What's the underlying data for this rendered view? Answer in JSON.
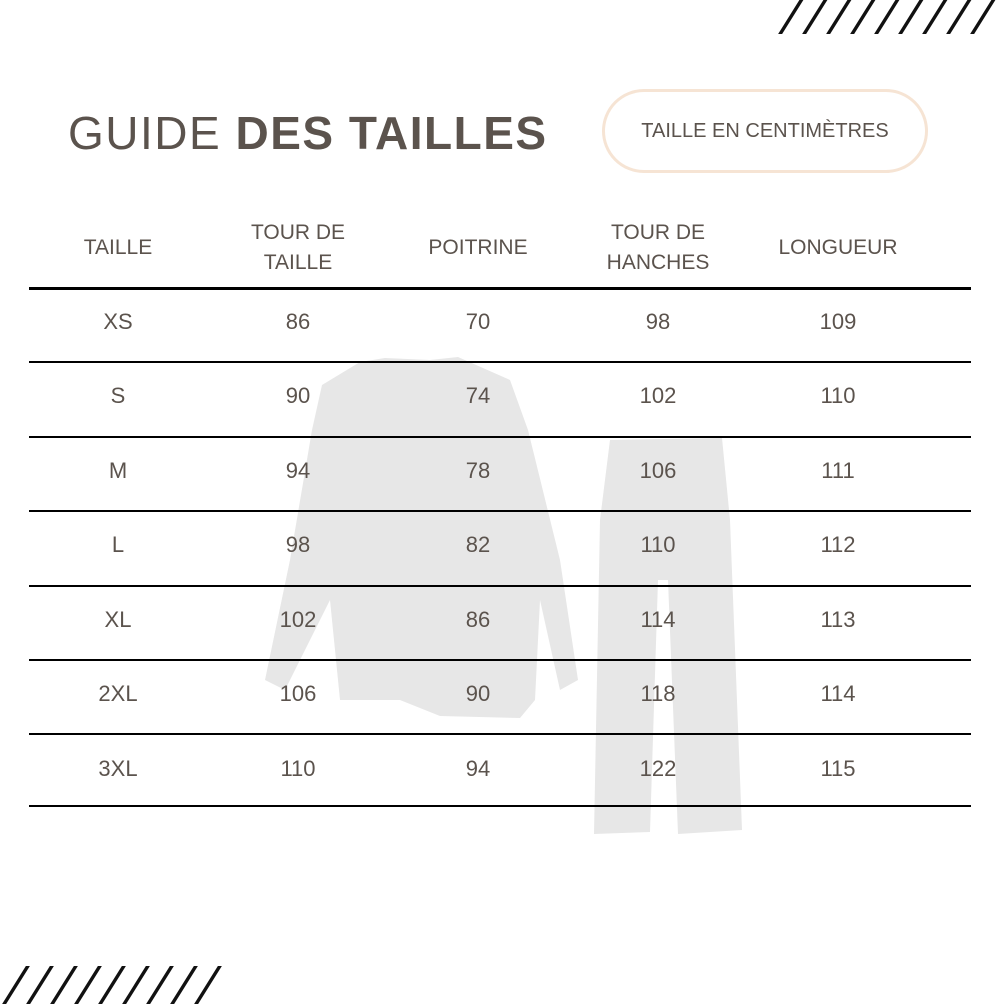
{
  "title": {
    "light": "GUIDE",
    "bold": "DES TAILLES"
  },
  "unit_badge": "TAILLE EN CENTIMÈTRES",
  "colors": {
    "text": "#5b534d",
    "badge_border": "#f6e4d4",
    "rules": "#000000",
    "garment": "#e6e6e6"
  },
  "table": {
    "headers": [
      "TAILLE",
      "TOUR DE\nTAILLE",
      "POITRINE",
      "TOUR DE\nHANCHES",
      "LONGUEUR"
    ],
    "rows": [
      [
        "XS",
        "86",
        "70",
        "98",
        "109"
      ],
      [
        "S",
        "90",
        "74",
        "102",
        "110"
      ],
      [
        "M",
        "94",
        "78",
        "106",
        "111"
      ],
      [
        "L",
        "98",
        "82",
        "110",
        "112"
      ],
      [
        "XL",
        "102",
        "86",
        "114",
        "113"
      ],
      [
        "2XL",
        "106",
        "90",
        "118",
        "114"
      ],
      [
        "3XL",
        "110",
        "94",
        "122",
        "115"
      ]
    ]
  }
}
